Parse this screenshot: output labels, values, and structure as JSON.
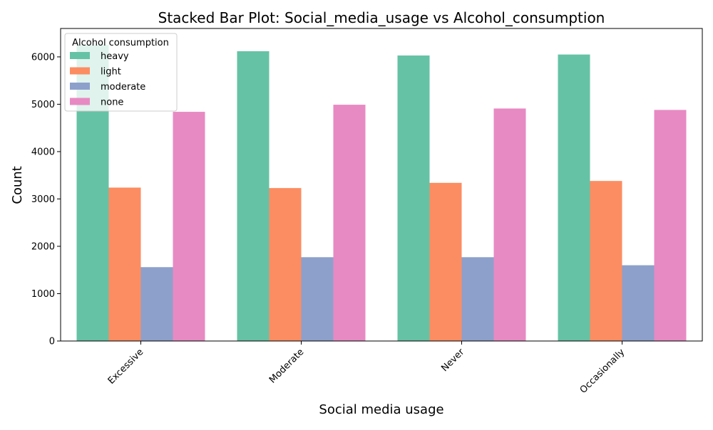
{
  "chart_data": {
    "type": "bar",
    "title": "Stacked Bar Plot: Social_media_usage vs Alcohol_consumption",
    "xlabel": "Social media usage",
    "ylabel": "Count",
    "categories": [
      "Excessive",
      "Moderate",
      "Never",
      "Occasionally"
    ],
    "series": [
      {
        "name": "heavy",
        "values": [
          6250,
          6120,
          6030,
          6050
        ]
      },
      {
        "name": "light",
        "values": [
          3240,
          3230,
          3340,
          3380
        ]
      },
      {
        "name": "moderate",
        "values": [
          1560,
          1770,
          1770,
          1600
        ]
      },
      {
        "name": "none",
        "values": [
          4840,
          4990,
          4910,
          4880
        ]
      }
    ],
    "ylim": [
      0,
      6600
    ],
    "yticks": [
      0,
      1000,
      2000,
      3000,
      4000,
      5000,
      6000
    ],
    "grid": false,
    "legend": {
      "title": "Alcohol consumption",
      "placement": "top-left"
    },
    "colors": {
      "heavy": "#66c2a5",
      "light": "#fc8d62",
      "moderate": "#8da0cb",
      "none": "#e78ac3"
    }
  }
}
